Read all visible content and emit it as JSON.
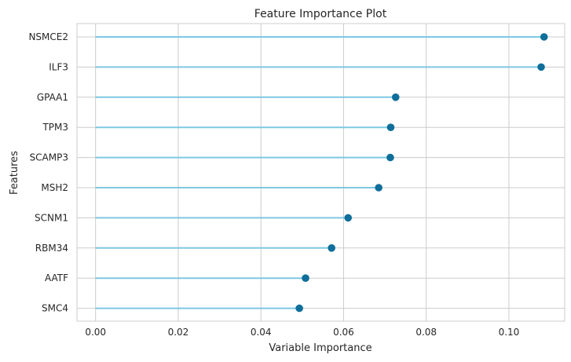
{
  "chart_data": {
    "type": "lollipop",
    "title": "Feature Importance Plot",
    "xlabel": "Variable Importance",
    "ylabel": "Features",
    "xlim": [
      -0.0045,
      0.1135
    ],
    "xticks": [
      0.0,
      0.02,
      0.04,
      0.06,
      0.08,
      0.1
    ],
    "xtick_labels": [
      "0.00",
      "0.02",
      "0.04",
      "0.06",
      "0.08",
      "0.10"
    ],
    "grid": true,
    "categories": [
      "NSMCE2",
      "ILF3",
      "GPAA1",
      "TPM3",
      "SCAMP3",
      "MSH2",
      "SCNM1",
      "RBM34",
      "AATF",
      "SMC4"
    ],
    "values": [
      0.1085,
      0.1078,
      0.0726,
      0.0714,
      0.0713,
      0.0685,
      0.0611,
      0.0571,
      0.0508,
      0.0493
    ],
    "colors": {
      "stem": "#7ec8e3",
      "marker": "#0f6e9a"
    }
  }
}
